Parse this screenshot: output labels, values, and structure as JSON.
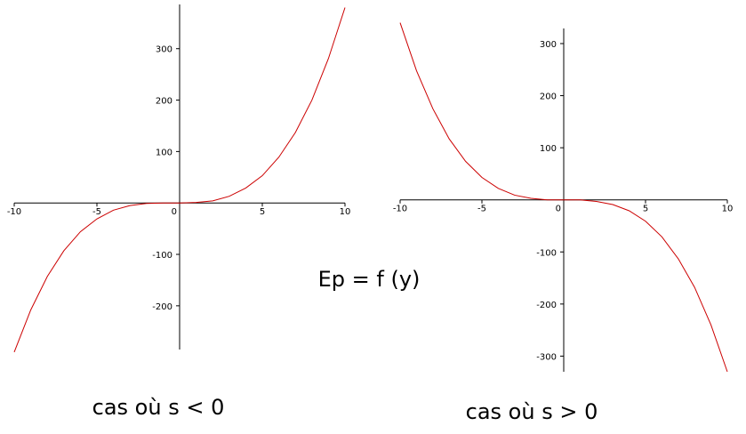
{
  "title": "Ep = f (y)",
  "chart_data": [
    {
      "type": "line",
      "caption": "cas où s < 0",
      "x": [
        -10,
        -9,
        -8,
        -7,
        -6,
        -5,
        -4,
        -3,
        -2,
        -1,
        0,
        1,
        2,
        3,
        4,
        5,
        6,
        7,
        8,
        9,
        10
      ],
      "series": [
        {
          "color": "#cc0000",
          "values": [
            -290,
            -208,
            -143,
            -93,
            -56,
            -31,
            -14,
            -5,
            -1,
            0,
            0,
            1,
            4,
            13,
            29,
            53,
            89,
            137,
            200,
            281,
            380
          ]
        }
      ],
      "xlim": [
        -10,
        10
      ],
      "xticks": [
        -10,
        -5,
        0,
        5,
        10
      ],
      "ylim": [
        -285,
        386
      ],
      "yticks": [
        -200,
        -100,
        100,
        200,
        300
      ]
    },
    {
      "type": "line",
      "caption": "cas où s > 0",
      "x": [
        -10,
        -9,
        -8,
        -7,
        -6,
        -5,
        -4,
        -3,
        -2,
        -1,
        0,
        1,
        2,
        3,
        4,
        5,
        6,
        7,
        8,
        9,
        10
      ],
      "series": [
        {
          "color": "#cc0000",
          "values": [
            340,
            248,
            175,
            117,
            74,
            43,
            22,
            9,
            3,
            0,
            0,
            0,
            -3,
            -9,
            -21,
            -41,
            -71,
            -113,
            -168,
            -240,
            -330
          ]
        }
      ],
      "xlim": [
        -10,
        10
      ],
      "xticks": [
        -10,
        -5,
        0,
        5,
        10
      ],
      "ylim": [
        -330,
        329
      ],
      "yticks": [
        -300,
        -200,
        -100,
        100,
        200,
        300
      ]
    }
  ]
}
